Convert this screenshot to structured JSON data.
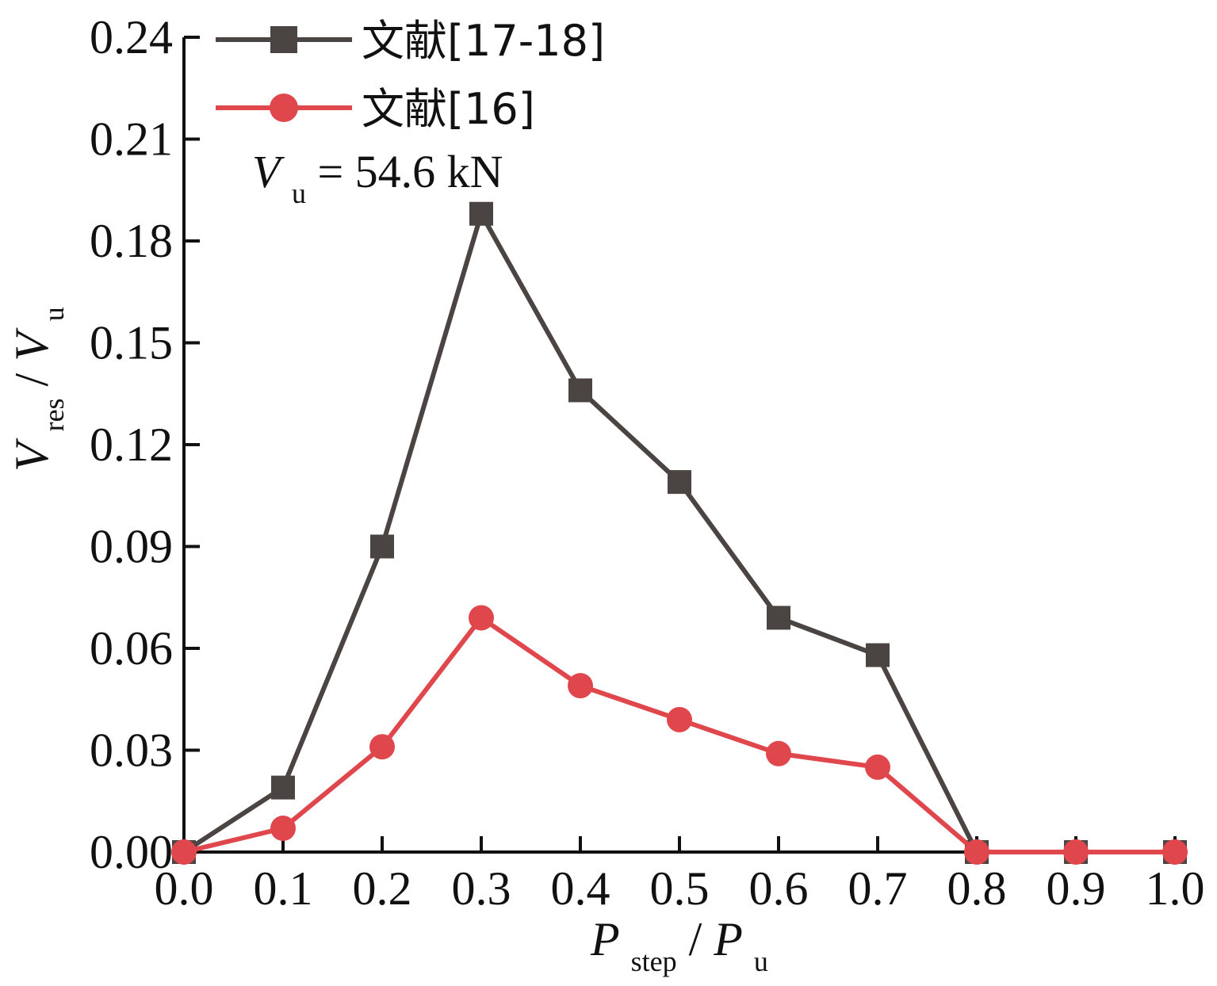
{
  "chart_data": {
    "type": "line",
    "xlabel": {
      "main": "P",
      "sub": "step",
      "sep": "/",
      "main2": "P",
      "sub2": "u"
    },
    "ylabel": {
      "main": "V",
      "sub": "res",
      "sep": "/",
      "main2": "V",
      "sub2": "u"
    },
    "xlim": [
      0.0,
      1.0
    ],
    "ylim": [
      0.0,
      0.24
    ],
    "x_ticks": [
      "0.0",
      "0.1",
      "0.2",
      "0.3",
      "0.4",
      "0.5",
      "0.6",
      "0.7",
      "0.8",
      "0.9",
      "1.0"
    ],
    "y_ticks": [
      "0.00",
      "0.03",
      "0.06",
      "0.09",
      "0.12",
      "0.15",
      "0.18",
      "0.21",
      "0.24"
    ],
    "x": [
      0.0,
      0.1,
      0.2,
      0.3,
      0.4,
      0.5,
      0.6,
      0.7,
      0.8,
      0.9,
      1.0
    ],
    "series": [
      {
        "name": "文献[17-18]",
        "marker": "square",
        "color": "#4a4442",
        "values": [
          0.0,
          0.019,
          0.09,
          0.188,
          0.136,
          0.109,
          0.069,
          0.058,
          0.0,
          0.0,
          0.0
        ]
      },
      {
        "name": "文献[16]",
        "marker": "circle",
        "color": "#e0474c",
        "values": [
          0.0,
          0.007,
          0.031,
          0.069,
          0.049,
          0.039,
          0.029,
          0.025,
          0.0,
          0.0,
          0.0
        ]
      }
    ],
    "annotation": {
      "main": "V",
      "sub": "u",
      "rest": " = 54.6 kN"
    },
    "legend_position": "top-left",
    "grid": false
  }
}
